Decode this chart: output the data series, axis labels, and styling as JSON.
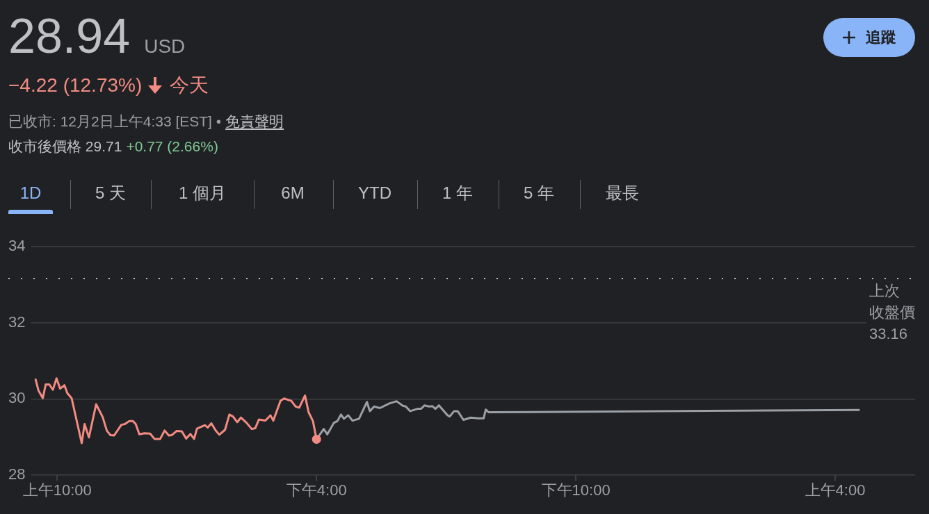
{
  "chart_data": {
    "type": "line",
    "title": "28.94",
    "annotations": [
      "USD",
      "−4.22 (12.73%)",
      "今天",
      "已收市: 12月2日上午4:33 [EST] •",
      "免責聲明",
      "收市後價格 29.71",
      "+0.77 (2.66%)",
      "1D",
      "5 天",
      "1 個月",
      "6M",
      "YTD",
      "1 年",
      "5 年",
      "最長",
      "追蹤"
    ],
    "xlim": [
      "--12-01T09:24",
      "--12-02T05:51"
    ],
    "xticks": [
      {
        "value": "--12-01T10:00",
        "label": "上午10:00"
      },
      {
        "value": "--12-01T16:00",
        "label": "下午4:00"
      },
      {
        "value": "--12-01T22:00",
        "label": "下午10:00"
      },
      {
        "value": "--12-02T04:00",
        "label": "上午4:00"
      }
    ],
    "ylim": [
      28,
      34
    ],
    "yticks": [
      28,
      30,
      32,
      34
    ],
    "grid": "y",
    "marker": "none",
    "ref_lines": [
      {
        "axis": "y",
        "value": 33.16,
        "label": "上次收盤價\n33.16",
        "color": "#bdc1c6",
        "line_style": "dotted"
      }
    ],
    "series": [
      {
        "color": "#f28b82",
        "x": [
          "--12-01T09:30",
          "--12-01T09:34",
          "--12-01T09:40",
          "--12-01T09:44",
          "--12-01T09:49",
          "--12-01T09:54",
          "--12-01T09:59",
          "--12-01T10:04",
          "--12-01T10:10",
          "--12-01T10:14",
          "--12-01T10:20",
          "--12-01T10:34",
          "--12-01T10:38",
          "--12-01T10:44",
          "--12-01T10:54",
          "--12-01T11:03",
          "--12-01T11:09",
          "--12-01T11:14",
          "--12-01T11:19",
          "--12-01T11:29",
          "--12-01T11:34",
          "--12-01T11:40",
          "--12-01T11:45",
          "--12-01T11:49",
          "--12-01T11:54",
          "--12-01T12:01",
          "--12-01T12:09",
          "--12-01T12:15",
          "--12-01T12:23",
          "--12-01T12:29",
          "--12-01T12:35",
          "--12-01T12:39",
          "--12-01T12:46",
          "--12-01T12:53",
          "--12-01T12:59",
          "--12-01T13:05",
          "--12-01T13:10",
          "--12-01T13:14",
          "--12-01T13:25",
          "--12-01T13:29",
          "--12-01T13:34",
          "--12-01T13:40",
          "--12-01T13:45",
          "--12-01T13:53",
          "--12-01T13:59",
          "--12-01T14:04",
          "--12-01T14:10",
          "--12-01T14:15",
          "--12-01T14:23",
          "--12-01T14:30",
          "--12-01T14:35",
          "--12-01T14:40",
          "--12-01T14:49",
          "--12-01T14:56",
          "--12-01T15:00",
          "--12-01T15:10",
          "--12-01T15:15",
          "--12-01T15:25",
          "--12-01T15:31",
          "--12-01T15:36",
          "--12-01T15:44",
          "--12-01T15:49",
          "--12-01T15:55",
          "--12-01T16:00"
        ],
        "values": [
          30.51,
          30.22,
          30.02,
          30.38,
          30.38,
          30.24,
          30.54,
          30.27,
          30.36,
          30.15,
          30.02,
          28.84,
          29.34,
          28.99,
          29.86,
          29.53,
          29.16,
          29.05,
          29.04,
          29.32,
          29.34,
          29.42,
          29.42,
          29.34,
          29.07,
          29.1,
          29.09,
          28.95,
          28.95,
          29.17,
          29.04,
          29.05,
          29.16,
          29.15,
          28.96,
          29.08,
          28.95,
          29.22,
          29.31,
          29.25,
          29.36,
          29.17,
          29.06,
          29.19,
          29.59,
          29.54,
          29.39,
          29.51,
          29.37,
          29.21,
          29.23,
          29.46,
          29.43,
          29.57,
          29.43,
          29.95,
          30.01,
          29.95,
          29.8,
          29.77,
          30.09,
          29.65,
          29.42,
          28.94
        ]
      },
      {
        "color": "#9aa0a6",
        "x": [
          "--12-01T16:00",
          "--12-01T16:10",
          "--12-01T16:15",
          "--12-01T16:24",
          "--12-01T16:29",
          "--12-01T16:34",
          "--12-01T16:38",
          "--12-01T16:44",
          "--12-01T16:50",
          "--12-01T16:59",
          "--12-01T17:10",
          "--12-01T17:14",
          "--12-01T17:20",
          "--12-01T17:28",
          "--12-01T17:41",
          "--12-01T17:51",
          "--12-01T18:00",
          "--12-01T18:04",
          "--12-01T18:10",
          "--12-01T18:20",
          "--12-01T18:25",
          "--12-01T18:30",
          "--12-01T18:36",
          "--12-01T18:41",
          "--12-01T18:45",
          "--12-01T18:50",
          "--12-01T19:02",
          "--12-01T19:05",
          "--12-01T19:11",
          "--12-01T19:16",
          "--12-01T19:24",
          "--12-01T19:34",
          "--12-01T19:44",
          "--12-01T19:52",
          "--12-01T19:55",
          "--12-01T19:59",
          "--12-02T04:33"
        ],
        "values": [
          28.94,
          29.21,
          29.07,
          29.37,
          29.42,
          29.59,
          29.48,
          29.57,
          29.43,
          29.48,
          29.92,
          29.68,
          29.8,
          29.76,
          29.88,
          29.94,
          29.82,
          29.8,
          29.68,
          29.74,
          29.74,
          29.83,
          29.8,
          29.81,
          29.74,
          29.83,
          29.57,
          29.54,
          29.68,
          29.68,
          29.45,
          29.51,
          29.49,
          29.49,
          29.72,
          29.65,
          29.71
        ]
      },
      {
        "type": "scatter",
        "marker": "circle",
        "color": "#f28b82",
        "x": [
          "--12-01T16:00"
        ],
        "values": [
          28.94
        ]
      }
    ]
  }
}
